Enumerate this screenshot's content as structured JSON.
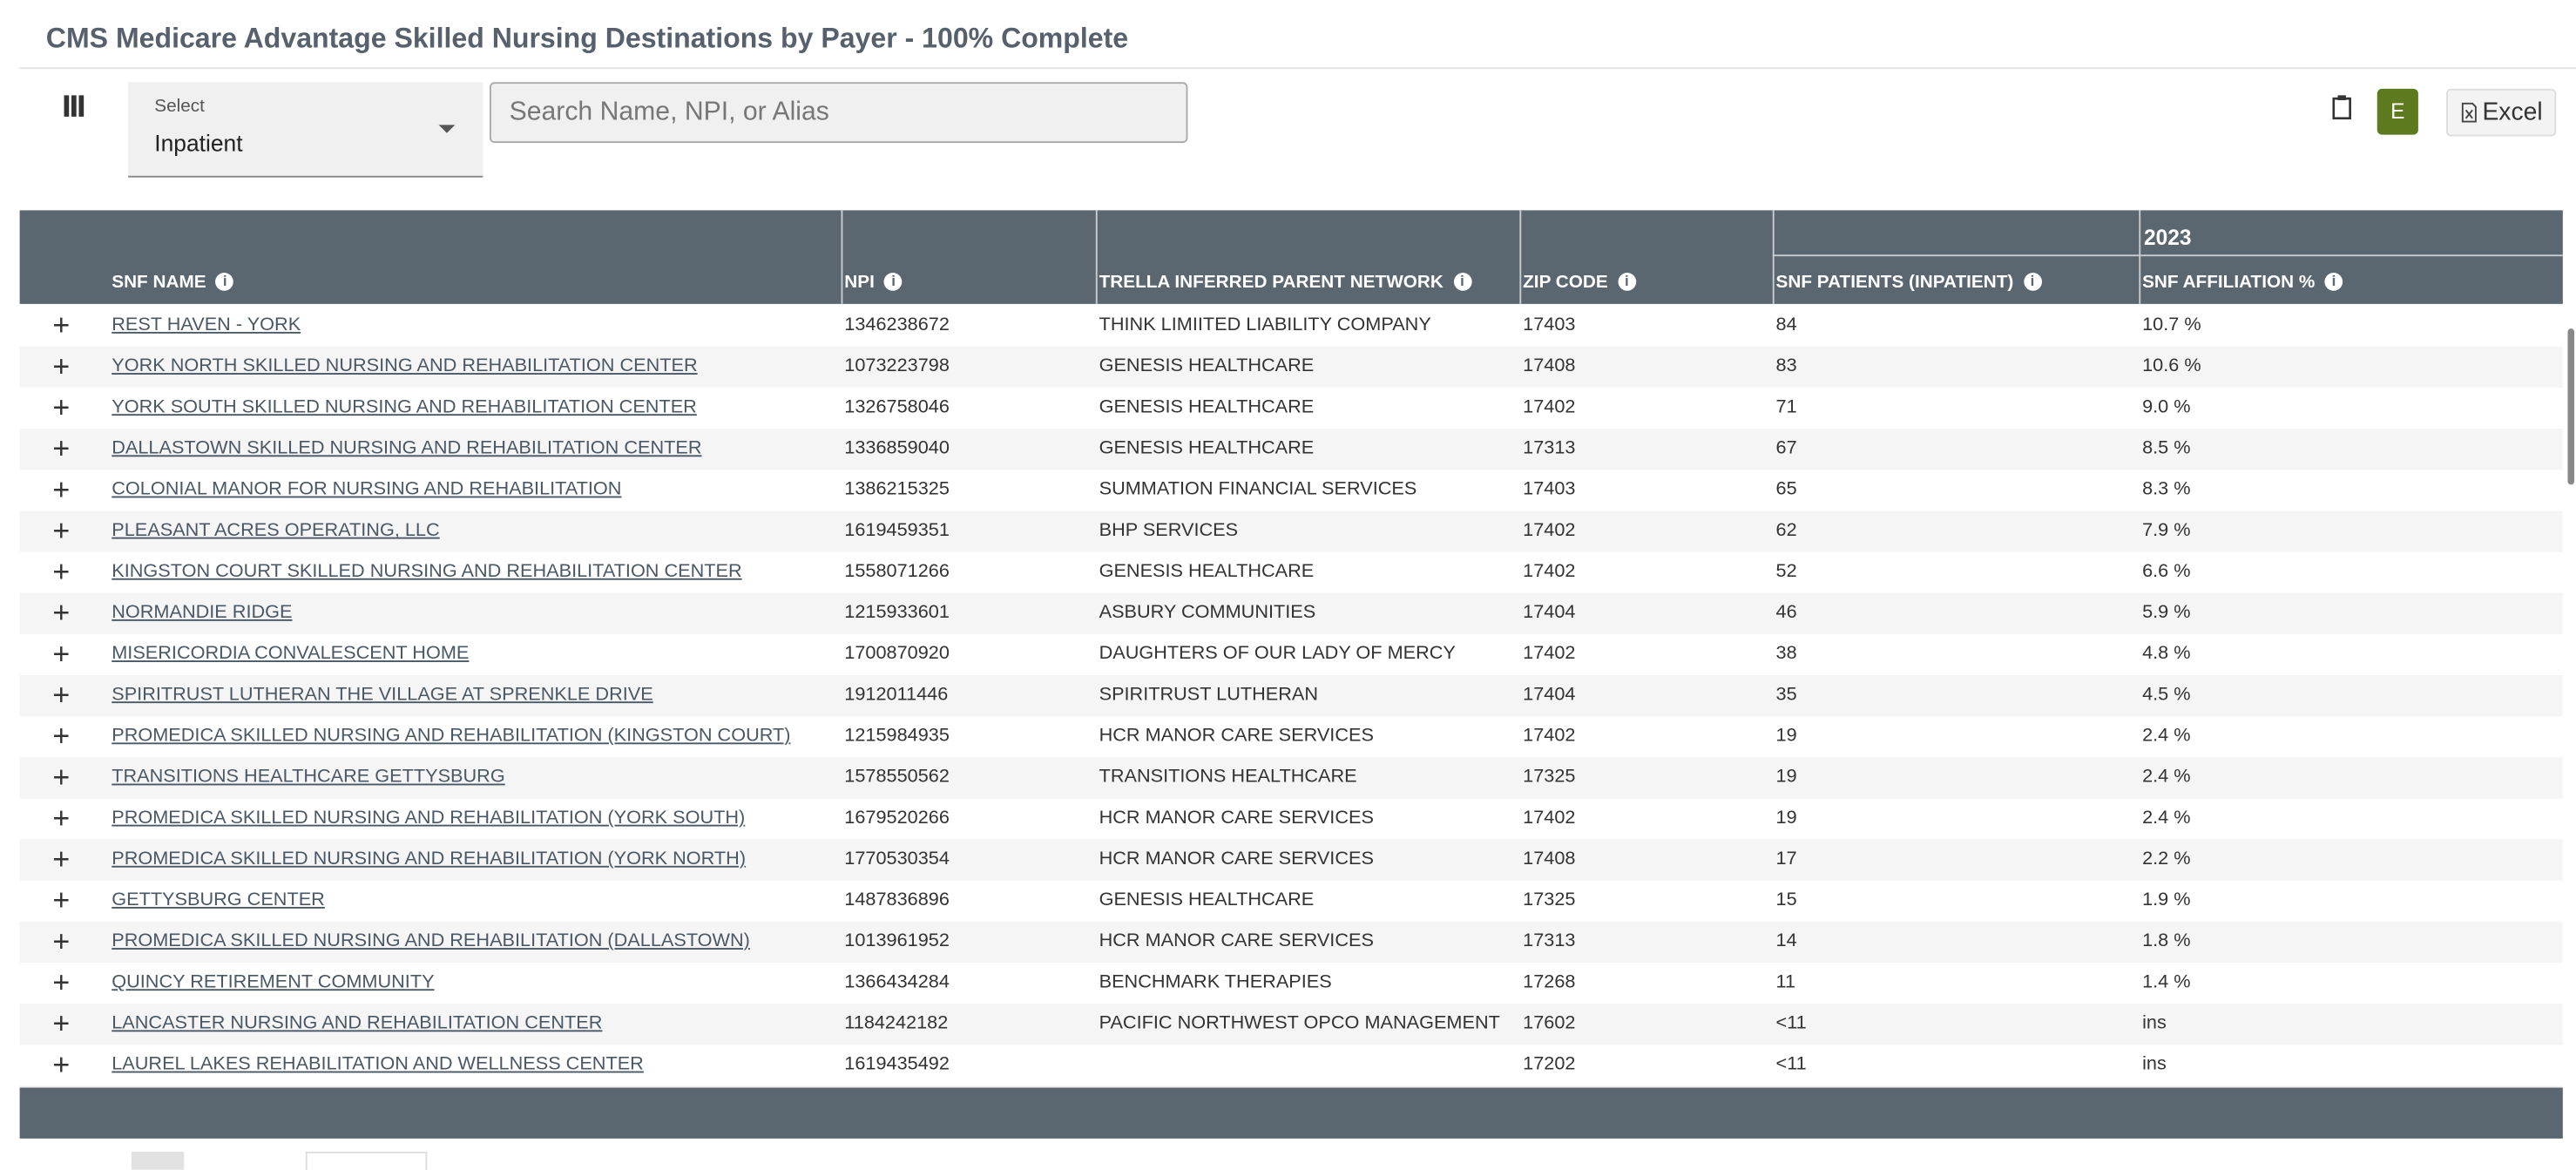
{
  "header": {
    "title": "CMS Medicare Advantage Skilled Nursing Destinations by Payer - 100% Complete"
  },
  "toolbar": {
    "select_label": "Select",
    "select_value": "Inpatient",
    "search_placeholder": "Search Name, NPI, or Alias",
    "user_initial": "E",
    "export_button": "Excel"
  },
  "table": {
    "group_header": "2023",
    "columns": [
      "SNF NAME",
      "NPI",
      "TRELLA INFERRED PARENT NETWORK",
      "ZIP CODE",
      "SNF PATIENTS (INPATIENT)",
      "SNF AFFILIATION %"
    ],
    "rows": [
      [
        "REST HAVEN - YORK",
        "1346238672",
        "THINK LIMIITED LIABILITY COMPANY",
        "17403",
        "84",
        "10.7 %"
      ],
      [
        "YORK NORTH SKILLED NURSING AND REHABILITATION CENTER",
        "1073223798",
        "GENESIS HEALTHCARE",
        "17408",
        "83",
        "10.6 %"
      ],
      [
        "YORK SOUTH SKILLED NURSING AND REHABILITATION CENTER",
        "1326758046",
        "GENESIS HEALTHCARE",
        "17402",
        "71",
        "9.0 %"
      ],
      [
        "DALLASTOWN SKILLED NURSING AND REHABILITATION CENTER",
        "1336859040",
        "GENESIS HEALTHCARE",
        "17313",
        "67",
        "8.5 %"
      ],
      [
        "COLONIAL MANOR FOR NURSING AND REHABILITATION",
        "1386215325",
        "SUMMATION FINANCIAL SERVICES",
        "17403",
        "65",
        "8.3 %"
      ],
      [
        "PLEASANT ACRES OPERATING, LLC",
        "1619459351",
        "BHP SERVICES",
        "17402",
        "62",
        "7.9 %"
      ],
      [
        "KINGSTON COURT SKILLED NURSING AND REHABILITATION CENTER",
        "1558071266",
        "GENESIS HEALTHCARE",
        "17402",
        "52",
        "6.6 %"
      ],
      [
        "NORMANDIE RIDGE",
        "1215933601",
        "ASBURY COMMUNITIES",
        "17404",
        "46",
        "5.9 %"
      ],
      [
        "MISERICORDIA CONVALESCENT HOME",
        "1700870920",
        "DAUGHTERS OF OUR LADY OF MERCY",
        "17402",
        "38",
        "4.8 %"
      ],
      [
        "SPIRITRUST LUTHERAN THE VILLAGE AT SPRENKLE DRIVE",
        "1912011446",
        "SPIRITRUST LUTHERAN",
        "17404",
        "35",
        "4.5 %"
      ],
      [
        "PROMEDICA SKILLED NURSING AND REHABILITATION (KINGSTON COURT)",
        "1215984935",
        "HCR MANOR CARE SERVICES",
        "17402",
        "19",
        "2.4 %"
      ],
      [
        "TRANSITIONS HEALTHCARE GETTYSBURG",
        "1578550562",
        "TRANSITIONS HEALTHCARE",
        "17325",
        "19",
        "2.4 %"
      ],
      [
        "PROMEDICA SKILLED NURSING AND REHABILITATION (YORK SOUTH)",
        "1679520266",
        "HCR MANOR CARE SERVICES",
        "17402",
        "19",
        "2.4 %"
      ],
      [
        "PROMEDICA SKILLED NURSING AND REHABILITATION (YORK NORTH)",
        "1770530354",
        "HCR MANOR CARE SERVICES",
        "17408",
        "17",
        "2.2 %"
      ],
      [
        "GETTYSBURG CENTER",
        "1487836896",
        "GENESIS HEALTHCARE",
        "17325",
        "15",
        "1.9 %"
      ],
      [
        "PROMEDICA SKILLED NURSING AND REHABILITATION (DALLASTOWN)",
        "1013961952",
        "HCR MANOR CARE SERVICES",
        "17313",
        "14",
        "1.8 %"
      ],
      [
        "QUINCY RETIREMENT COMMUNITY",
        "1366434284",
        "BENCHMARK THERAPIES",
        "17268",
        "11",
        "1.4 %"
      ],
      [
        "LANCASTER NURSING AND REHABILITATION CENTER",
        "1184242182",
        "PACIFIC NORTHWEST OPCO MANAGEMENT",
        "17602",
        "<11",
        "ins"
      ],
      [
        "LAUREL LAKES REHABILITATION AND WELLNESS CENTER",
        "1619435492",
        null,
        "17202",
        "<11",
        "ins"
      ]
    ]
  }
}
